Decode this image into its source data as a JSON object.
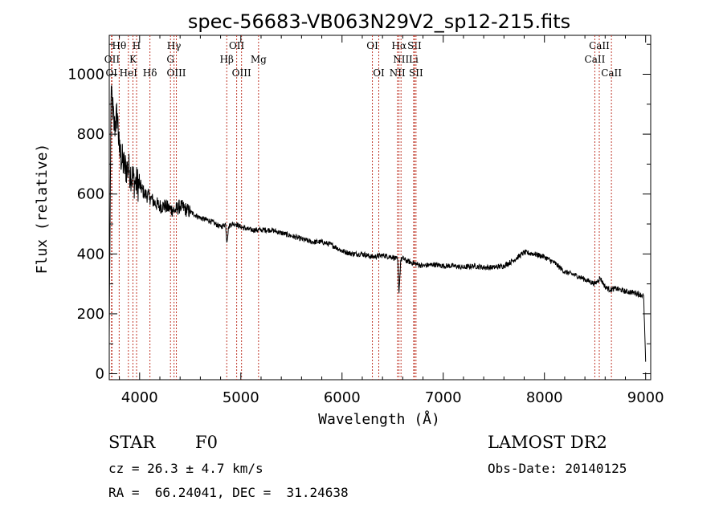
{
  "chart_data": {
    "type": "line",
    "title": "spec-56683-VB063N29V2_sp12-215.fits",
    "xlabel": "Wavelength (Å)",
    "ylabel": "Flux (relative)",
    "xlim": [
      3700,
      9050
    ],
    "ylim": [
      -20,
      1130
    ],
    "xticks": [
      4000,
      5000,
      6000,
      7000,
      8000,
      9000
    ],
    "yticks": [
      0,
      200,
      400,
      600,
      800,
      1000
    ],
    "grid": false,
    "series": [
      {
        "color": "#000000",
        "x": [
          3700,
          3710,
          3720,
          3730,
          3750,
          3780,
          3800,
          3850,
          3900,
          3950,
          4000,
          4050,
          4100,
          4150,
          4200,
          4250,
          4300,
          4350,
          4400,
          4500,
          4600,
          4700,
          4800,
          4850,
          4861,
          4880,
          4900,
          4950,
          5000,
          5100,
          5200,
          5300,
          5400,
          5500,
          5600,
          5700,
          5800,
          5900,
          6000,
          6100,
          6200,
          6300,
          6400,
          6500,
          6550,
          6563,
          6580,
          6600,
          6650,
          6700,
          6800,
          6900,
          7000,
          7100,
          7200,
          7300,
          7400,
          7500,
          7600,
          7700,
          7800,
          7900,
          8000,
          8100,
          8200,
          8300,
          8400,
          8500,
          8550,
          8600,
          8650,
          8700,
          8800,
          8900,
          8980,
          9000
        ],
        "y": [
          120,
          600,
          960,
          900,
          820,
          870,
          740,
          690,
          680,
          640,
          630,
          600,
          590,
          570,
          560,
          560,
          550,
          545,
          560,
          540,
          520,
          510,
          490,
          500,
          440,
          490,
          500,
          500,
          490,
          480,
          480,
          480,
          470,
          460,
          450,
          440,
          440,
          430,
          410,
          400,
          400,
          390,
          395,
          390,
          380,
          270,
          380,
          385,
          375,
          370,
          360,
          365,
          360,
          360,
          355,
          360,
          355,
          355,
          360,
          380,
          405,
          400,
          390,
          370,
          340,
          330,
          315,
          300,
          320,
          290,
          280,
          285,
          275,
          270,
          260,
          40
        ]
      }
    ],
    "annotations": {
      "spectral_lines": [
        {
          "label": "Hθ",
          "x": 3798,
          "row": 1
        },
        {
          "label": "H",
          "x": 3970,
          "row": 1
        },
        {
          "label": "Hγ",
          "x": 4340,
          "row": 1
        },
        {
          "label": "OII",
          "x": 4959,
          "row": 1
        },
        {
          "label": "OI",
          "x": 6300,
          "row": 1
        },
        {
          "label": "Hα",
          "x": 6563,
          "row": 1
        },
        {
          "label": "SII",
          "x": 6716,
          "row": 1
        },
        {
          "label": "CaII",
          "x": 8542,
          "row": 1
        },
        {
          "label": "OII",
          "x": 3727,
          "row": 2
        },
        {
          "label": "K",
          "x": 3934,
          "row": 2
        },
        {
          "label": "G",
          "x": 4305,
          "row": 2
        },
        {
          "label": "Hβ",
          "x": 4861,
          "row": 2
        },
        {
          "label": "Mg",
          "x": 5175,
          "row": 2
        },
        {
          "label": "NII",
          "x": 6583,
          "row": 2
        },
        {
          "label": "Li",
          "x": 6708,
          "row": 2
        },
        {
          "label": "CaII",
          "x": 8498,
          "row": 2
        },
        {
          "label": "OI",
          "x": 3722,
          "row": 3
        },
        {
          "label": "HeI",
          "x": 3889,
          "row": 3
        },
        {
          "label": "Hδ",
          "x": 4102,
          "row": 3
        },
        {
          "label": "OIII",
          "x": 4363,
          "row": 3
        },
        {
          "label": "OIII",
          "x": 5007,
          "row": 3
        },
        {
          "label": "OI",
          "x": 6363,
          "row": 3
        },
        {
          "label": "NII",
          "x": 6548,
          "row": 3
        },
        {
          "label": "SII",
          "x": 6731,
          "row": 3
        },
        {
          "label": "CaII",
          "x": 8662,
          "row": 3
        }
      ]
    }
  },
  "info": {
    "class": "STAR",
    "subclass": "F0",
    "survey": "LAMOST DR2",
    "cz": "cz = 26.3 ± 4.7 km/s",
    "obs_date": "Obs-Date: 20140125",
    "coords": "RA =  66.24041, DEC =  31.24638"
  }
}
